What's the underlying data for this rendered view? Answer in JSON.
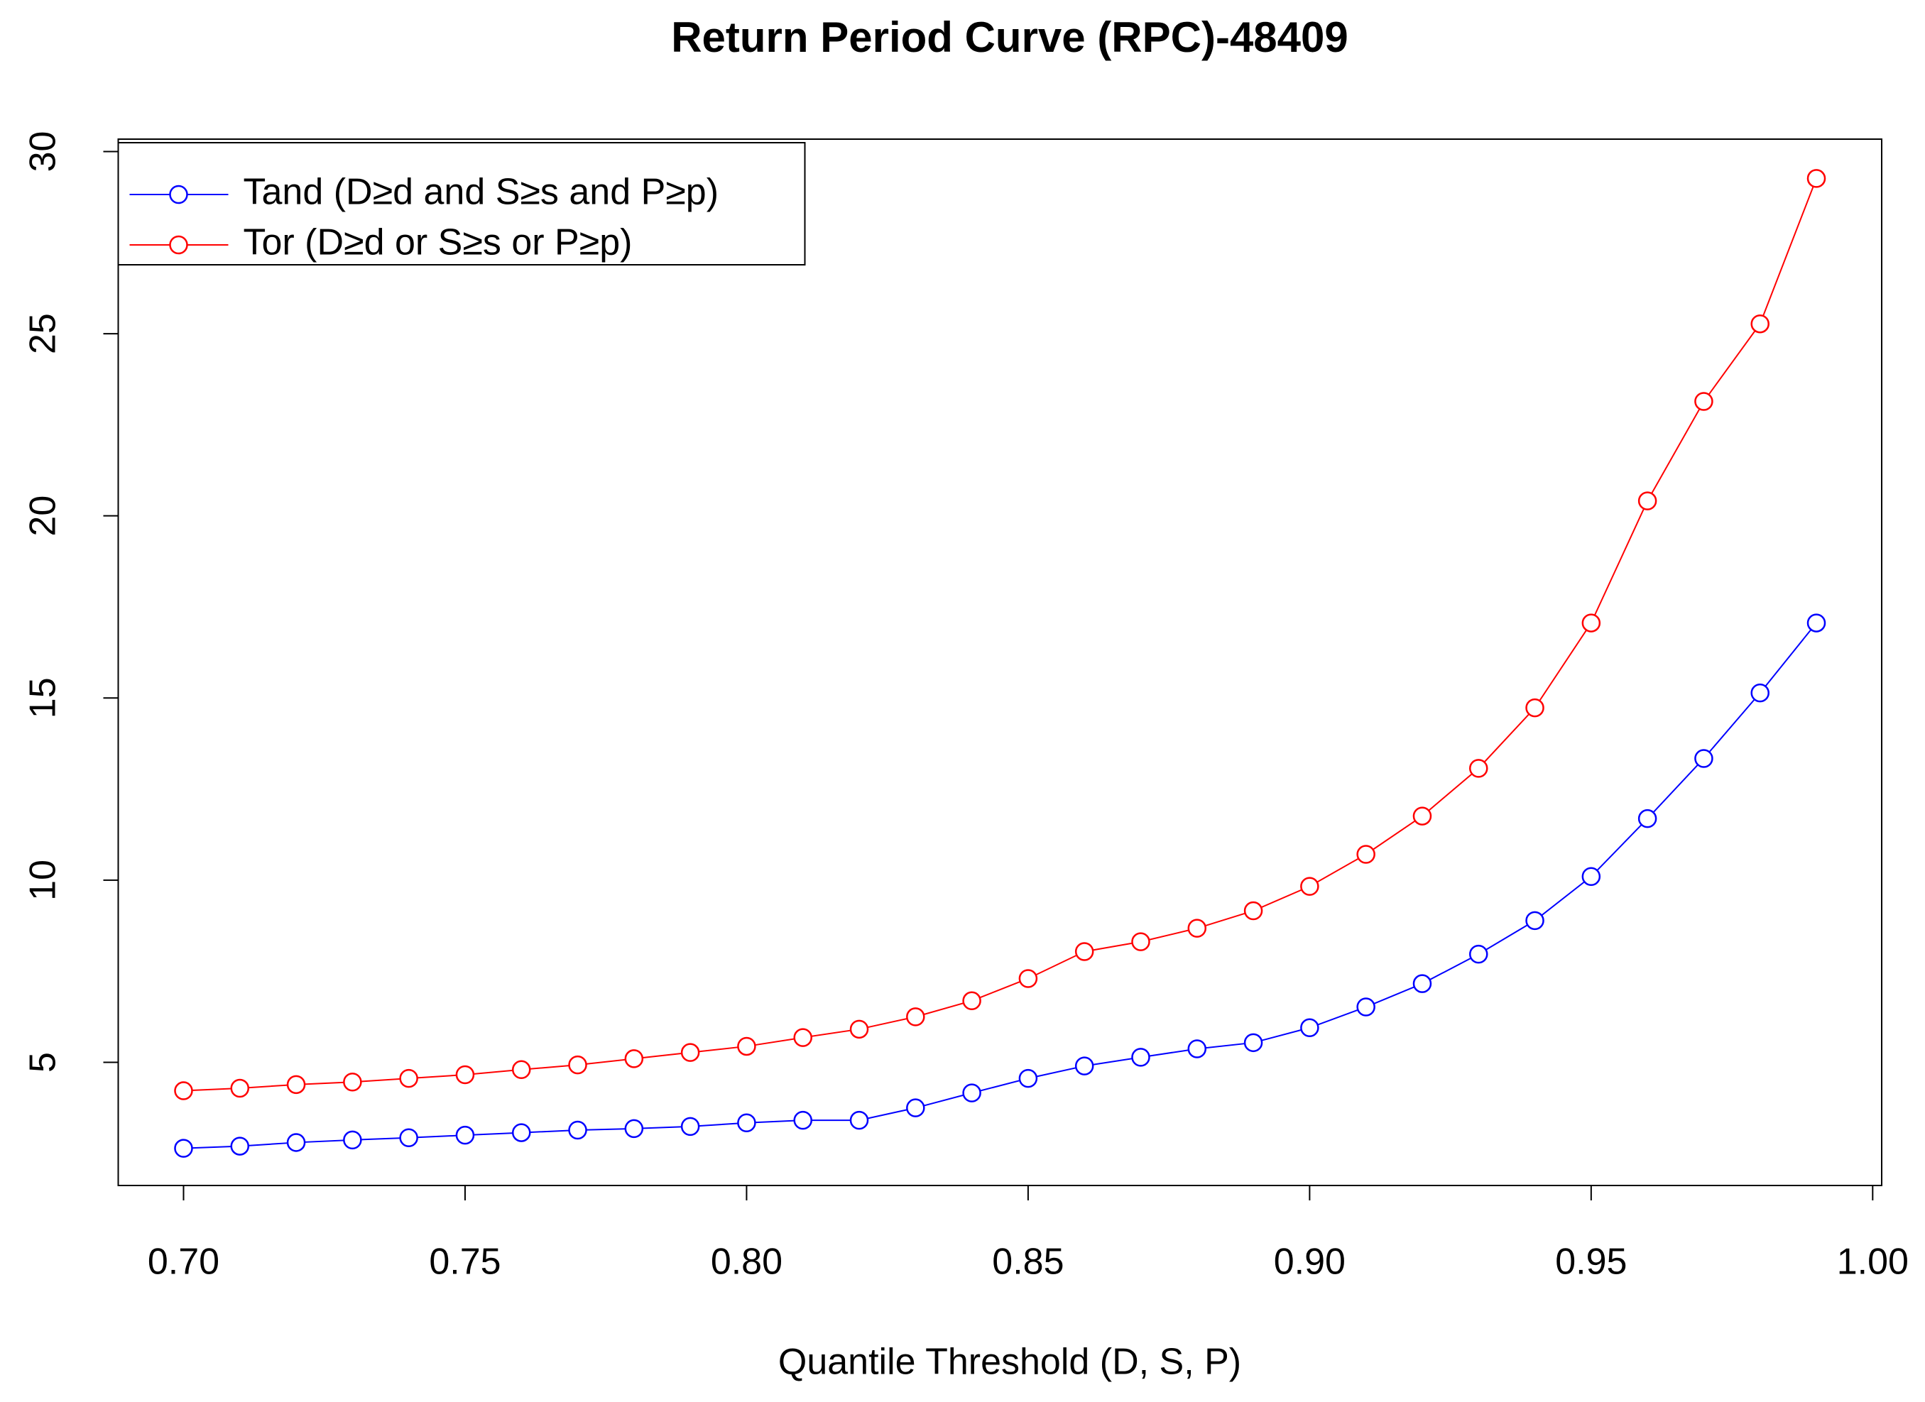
{
  "chart_data": {
    "type": "line",
    "title": "Return Period Curve (RPC)-48409",
    "x_label": "Quantile Threshold (D, S, P)",
    "x": [
      0.7,
      0.71,
      0.72,
      0.73,
      0.74,
      0.75,
      0.76,
      0.77,
      0.78,
      0.79,
      0.8,
      0.81,
      0.82,
      0.83,
      0.84,
      0.85,
      0.86,
      0.87,
      0.88,
      0.89,
      0.9,
      0.91,
      0.92,
      0.93,
      0.94,
      0.95,
      0.96,
      0.97,
      0.98,
      0.99
    ],
    "series": [
      {
        "name": "Tand (D≥d and S≥s and P≥p)",
        "color": "#0000ff",
        "values": [
          2.64,
          2.7,
          2.8,
          2.87,
          2.93,
          3.0,
          3.07,
          3.14,
          3.18,
          3.24,
          3.34,
          3.41,
          3.41,
          3.75,
          4.16,
          4.56,
          4.9,
          5.14,
          5.37,
          5.54,
          5.95,
          6.52,
          7.16,
          7.97,
          8.89,
          10.1,
          11.69,
          13.34,
          15.14,
          17.06
        ]
      },
      {
        "name": "Tor (D≥d or S≥s or P≥p)",
        "color": "#ff0000",
        "values": [
          4.22,
          4.29,
          4.39,
          4.46,
          4.56,
          4.66,
          4.8,
          4.93,
          5.1,
          5.27,
          5.44,
          5.68,
          5.91,
          6.25,
          6.69,
          7.3,
          8.04,
          8.31,
          8.68,
          9.16,
          9.83,
          10.71,
          11.76,
          13.07,
          14.73,
          17.06,
          20.41,
          23.14,
          25.27,
          29.26
        ]
      }
    ],
    "xlim": [
      0.6884,
      1.0016
    ],
    "ylim": [
      1.62,
      30.34
    ],
    "xticks": [
      {
        "value": 0.7,
        "label": "0.70"
      },
      {
        "value": 0.75,
        "label": "0.75"
      },
      {
        "value": 0.8,
        "label": "0.80"
      },
      {
        "value": 0.85,
        "label": "0.85"
      },
      {
        "value": 0.9,
        "label": "0.90"
      },
      {
        "value": 0.95,
        "label": "0.95"
      },
      {
        "value": 1.0,
        "label": "1.00"
      }
    ],
    "yticks": [
      5,
      10,
      15,
      20,
      25,
      30
    ],
    "legend": "topleft",
    "grid": false
  }
}
